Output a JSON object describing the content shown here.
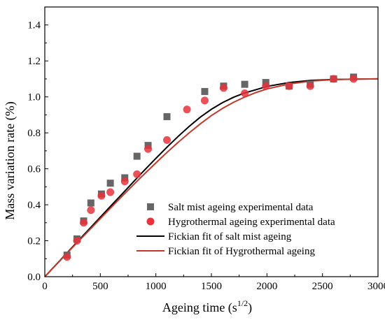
{
  "chart_data": {
    "type": "scatter",
    "title": "",
    "xlabel": "Ageing time (s",
    "xlabel_sup": "1/2",
    "xlabel_tail": ")",
    "ylabel": "Mass variation rate (%)",
    "xlim": [
      0,
      3000
    ],
    "ylim": [
      0,
      1.5
    ],
    "xticks": [
      0,
      500,
      1000,
      1500,
      2000,
      2500,
      3000
    ],
    "yticks": [
      0.0,
      0.2,
      0.4,
      0.6,
      0.8,
      1.0,
      1.2,
      1.4
    ],
    "xtick_labels": [
      "0",
      "500",
      "1000",
      "1500",
      "2000",
      "2500",
      "3000"
    ],
    "ytick_labels": [
      "0.0",
      "0.2",
      "0.4",
      "0.6",
      "0.8",
      "1.0",
      "1.2",
      "1.4"
    ],
    "grid": false,
    "legend_position": "bottom-right",
    "series": [
      {
        "name": "Salt mist ageing experimental data",
        "kind": "points",
        "marker": "square",
        "color": "#666666",
        "x": [
          200,
          290,
          350,
          415,
          510,
          590,
          720,
          830,
          930,
          1100,
          1440,
          1610,
          1800,
          1990,
          2200,
          2390,
          2600,
          2780
        ],
        "y": [
          0.12,
          0.21,
          0.31,
          0.41,
          0.46,
          0.52,
          0.55,
          0.67,
          0.73,
          0.89,
          1.03,
          1.06,
          1.07,
          1.08,
          1.06,
          1.07,
          1.1,
          1.11
        ]
      },
      {
        "name": "Hygrothermal ageing experimental data",
        "kind": "points",
        "marker": "circle",
        "color": "#e8323c",
        "x": [
          200,
          290,
          350,
          415,
          510,
          590,
          720,
          830,
          930,
          1100,
          1280,
          1440,
          1610,
          1800,
          1990,
          2200,
          2390,
          2600,
          2780
        ],
        "y": [
          0.11,
          0.2,
          0.3,
          0.37,
          0.45,
          0.47,
          0.53,
          0.57,
          0.71,
          0.76,
          0.93,
          0.98,
          1.05,
          1.02,
          1.06,
          1.06,
          1.06,
          1.1,
          1.1
        ]
      },
      {
        "name": "Fickian fit of salt mist ageing",
        "kind": "line",
        "color": "#000000",
        "x": [
          0,
          100,
          200,
          300,
          400,
          500,
          600,
          700,
          800,
          900,
          1000,
          1100,
          1200,
          1300,
          1400,
          1500,
          1600,
          1700,
          1800,
          1900,
          2000,
          2200,
          2400,
          2600,
          2800,
          3000
        ],
        "y": [
          0.0,
          0.066,
          0.132,
          0.199,
          0.265,
          0.331,
          0.397,
          0.463,
          0.529,
          0.594,
          0.658,
          0.72,
          0.78,
          0.836,
          0.887,
          0.931,
          0.968,
          0.998,
          1.022,
          1.04,
          1.058,
          1.08,
          1.092,
          1.097,
          1.099,
          1.1
        ]
      },
      {
        "name": "Fickian fit of Hygrothermal ageing",
        "kind": "line",
        "color": "#c0392b",
        "x": [
          0,
          100,
          200,
          300,
          400,
          500,
          600,
          700,
          800,
          900,
          1000,
          1100,
          1200,
          1300,
          1400,
          1500,
          1600,
          1700,
          1800,
          1900,
          2000,
          2200,
          2400,
          2600,
          2800,
          3000
        ],
        "y": [
          0.0,
          0.065,
          0.13,
          0.195,
          0.259,
          0.323,
          0.387,
          0.45,
          0.512,
          0.573,
          0.633,
          0.691,
          0.747,
          0.8,
          0.85,
          0.896,
          0.936,
          0.97,
          0.999,
          1.024,
          1.044,
          1.072,
          1.088,
          1.096,
          1.099,
          1.1
        ]
      }
    ]
  }
}
